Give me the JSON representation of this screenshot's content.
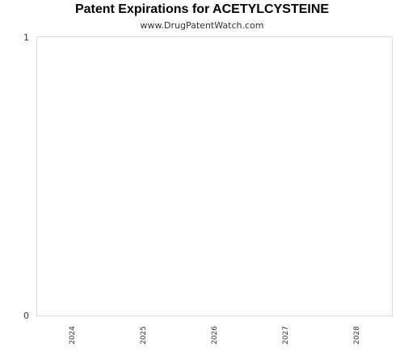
{
  "chart_data": {
    "type": "bar",
    "title": "Patent Expirations for ACETYLCYSTEINE",
    "subtitle": "www.DrugPatentWatch.com",
    "categories": [
      "2024",
      "2025",
      "2026",
      "2027",
      "2028"
    ],
    "values": [
      0,
      0,
      0,
      0,
      0
    ],
    "ylim": [
      0,
      1
    ],
    "y_ticks": [
      "1",
      "0"
    ],
    "xlabel": "",
    "ylabel": "",
    "grid": false,
    "colors": {
      "plot_border": "#dddddd",
      "text": "#333333"
    }
  }
}
